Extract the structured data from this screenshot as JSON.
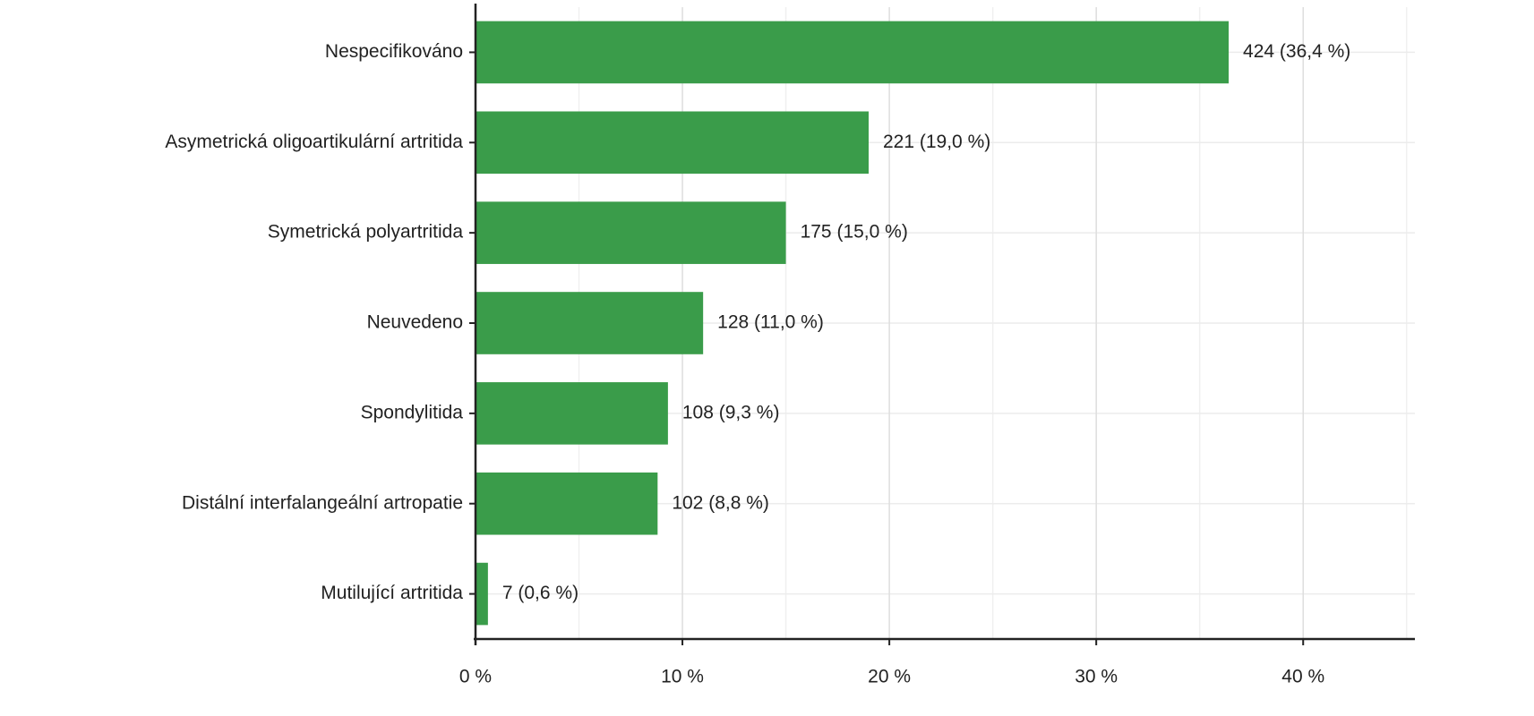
{
  "chart_data": {
    "type": "hbar",
    "categories": [
      "Nespecifikováno",
      "Asymetrická oligoartikulární artritida",
      "Symetrická polyartritida",
      "Neuvedeno",
      "Spondylitida",
      "Distální interfalangeální artropatie",
      "Mutilující artritida"
    ],
    "values": [
      36.4,
      19.0,
      15.0,
      11.0,
      9.3,
      8.8,
      0.6
    ],
    "value_labels": [
      "424 (36,4 %)",
      "221 (19,0 %)",
      "175 (15,0 %)",
      "128 (11,0 %)",
      "108 (9,3 %)",
      "102 (8,8 %)",
      "7 (0,6 %)"
    ],
    "color": "#3a9c4a",
    "xlim": [
      0,
      45.4
    ],
    "xticks": [
      {
        "value": 0,
        "label": "0 %"
      },
      {
        "value": 10,
        "label": "10 %"
      },
      {
        "value": 20,
        "label": "20 %"
      },
      {
        "value": 30,
        "label": "30 %"
      },
      {
        "value": 40,
        "label": "40 %"
      }
    ],
    "minor_xticks": [
      5,
      15,
      25,
      35,
      45
    ],
    "grid": true
  }
}
